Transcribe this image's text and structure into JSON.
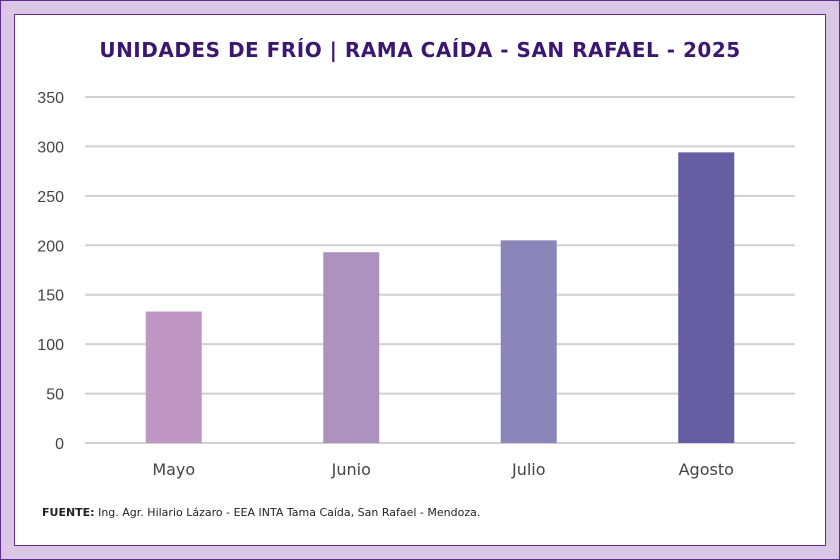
{
  "chart_data": {
    "type": "bar",
    "title": "UNIDADES DE FRÍO | RAMA CAÍDA - SAN RAFAEL - 2025",
    "categories": [
      "Mayo",
      "Junio",
      "Julio",
      "Agosto"
    ],
    "values": [
      133,
      193,
      205,
      294
    ],
    "colors": [
      "#c097c2",
      "#ad92c0",
      "#8a86b9",
      "#655ea3"
    ],
    "ylim": [
      0,
      350
    ],
    "yticks": [
      0,
      50,
      100,
      150,
      200,
      250,
      300,
      350
    ],
    "xlabel": "",
    "ylabel": "",
    "grid": true
  },
  "source": {
    "label": "FUENTE:",
    "text": " Ing. Agr. Hilario Lázaro - EEA INTA Tama Caída, San Rafael - Mendoza."
  }
}
